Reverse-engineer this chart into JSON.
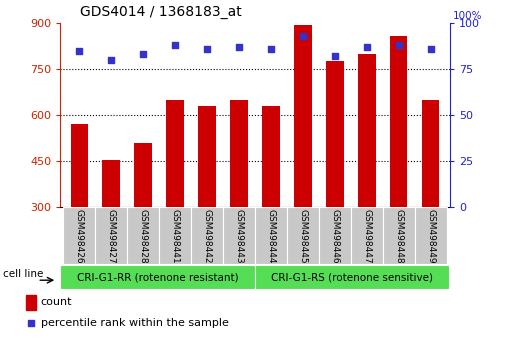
{
  "title": "GDS4014 / 1368183_at",
  "samples": [
    "GSM498426",
    "GSM498427",
    "GSM498428",
    "GSM498441",
    "GSM498442",
    "GSM498443",
    "GSM498444",
    "GSM498445",
    "GSM498446",
    "GSM498447",
    "GSM498448",
    "GSM498449"
  ],
  "counts": [
    570,
    452,
    510,
    650,
    628,
    648,
    628,
    893,
    775,
    800,
    858,
    648
  ],
  "percentiles": [
    85,
    80,
    83,
    88,
    86,
    87,
    86,
    93,
    82,
    87,
    88,
    86
  ],
  "group1_label": "CRI-G1-RR (rotenone resistant)",
  "group2_label": "CRI-G1-RS (rotenone sensitive)",
  "group1_count": 6,
  "group2_count": 6,
  "bar_color": "#CC0000",
  "dot_color": "#3333CC",
  "group_bg_color": "#55DD55",
  "tick_bg_color": "#C8C8C8",
  "ylim_left": [
    300,
    900
  ],
  "ylim_right": [
    0,
    100
  ],
  "yticks_left": [
    300,
    450,
    600,
    750,
    900
  ],
  "yticks_right": [
    0,
    25,
    50,
    75,
    100
  ],
  "grid_values": [
    750,
    600,
    450
  ],
  "left_axis_color": "#CC2200",
  "right_axis_color": "#2222CC",
  "legend_count_label": "count",
  "legend_pct_label": "percentile rank within the sample",
  "cell_line_label": "cell line"
}
